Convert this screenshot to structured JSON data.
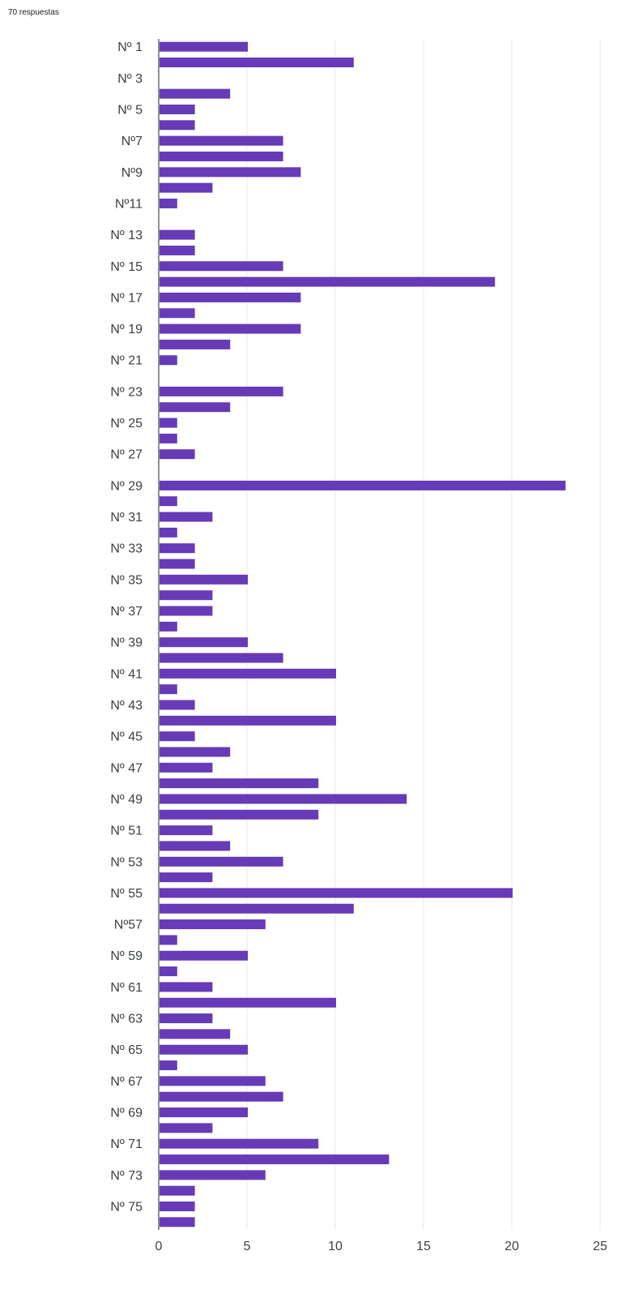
{
  "header": {
    "responses": "70 respuestas"
  },
  "colors": {
    "bar": "#673ab7",
    "grid": "#e8e8e8",
    "axis": "#202124"
  },
  "chart_data": {
    "type": "bar",
    "orientation": "horizontal",
    "categories": [
      "Nº 1",
      "",
      "Nº 3",
      "",
      "Nº 5",
      "",
      "Nº7",
      "",
      "Nº9",
      "",
      "Nº11",
      "",
      "Nº 13",
      "",
      "Nº 15",
      "",
      "Nº 17",
      "",
      "Nº 19",
      "",
      "Nº 21",
      "",
      "Nº 23",
      "",
      "Nº 25",
      "",
      "Nº 27",
      "",
      "Nº 29",
      "",
      "Nº 31",
      "",
      "Nº 33",
      "",
      "Nº 35",
      "",
      "Nº 37",
      "",
      "Nº 39",
      "",
      "Nº 41",
      "",
      "Nº 43",
      "",
      "Nº 45",
      "",
      "Nº 47",
      "",
      "Nº 49",
      "",
      "Nº 51",
      "",
      "Nº 53",
      "",
      "Nº 55",
      "",
      "Nº57",
      "",
      "Nº 59",
      "",
      "Nº 61",
      "",
      "Nº 63",
      "",
      "Nº 65",
      "",
      "Nº 67",
      "",
      "Nº 69",
      "",
      "Nº 71",
      "",
      "Nº 73",
      "",
      "Nº 75",
      ""
    ],
    "values": [
      5,
      11,
      0,
      4,
      2,
      2,
      7,
      7,
      8,
      3,
      1,
      0,
      2,
      2,
      7,
      19,
      8,
      2,
      8,
      4,
      1,
      0,
      7,
      4,
      1,
      1,
      2,
      0,
      23,
      1,
      3,
      1,
      2,
      2,
      5,
      3,
      3,
      1,
      5,
      7,
      10,
      1,
      2,
      10,
      2,
      4,
      3,
      9,
      14,
      9,
      3,
      4,
      7,
      3,
      20,
      11,
      6,
      1,
      5,
      1,
      3,
      10,
      3,
      4,
      5,
      1,
      6,
      7,
      5,
      3,
      9,
      13,
      6,
      2,
      2,
      2
    ],
    "xlim": [
      0,
      25
    ],
    "xticks": [
      0,
      5,
      10,
      15,
      20,
      25
    ],
    "grid": true
  }
}
